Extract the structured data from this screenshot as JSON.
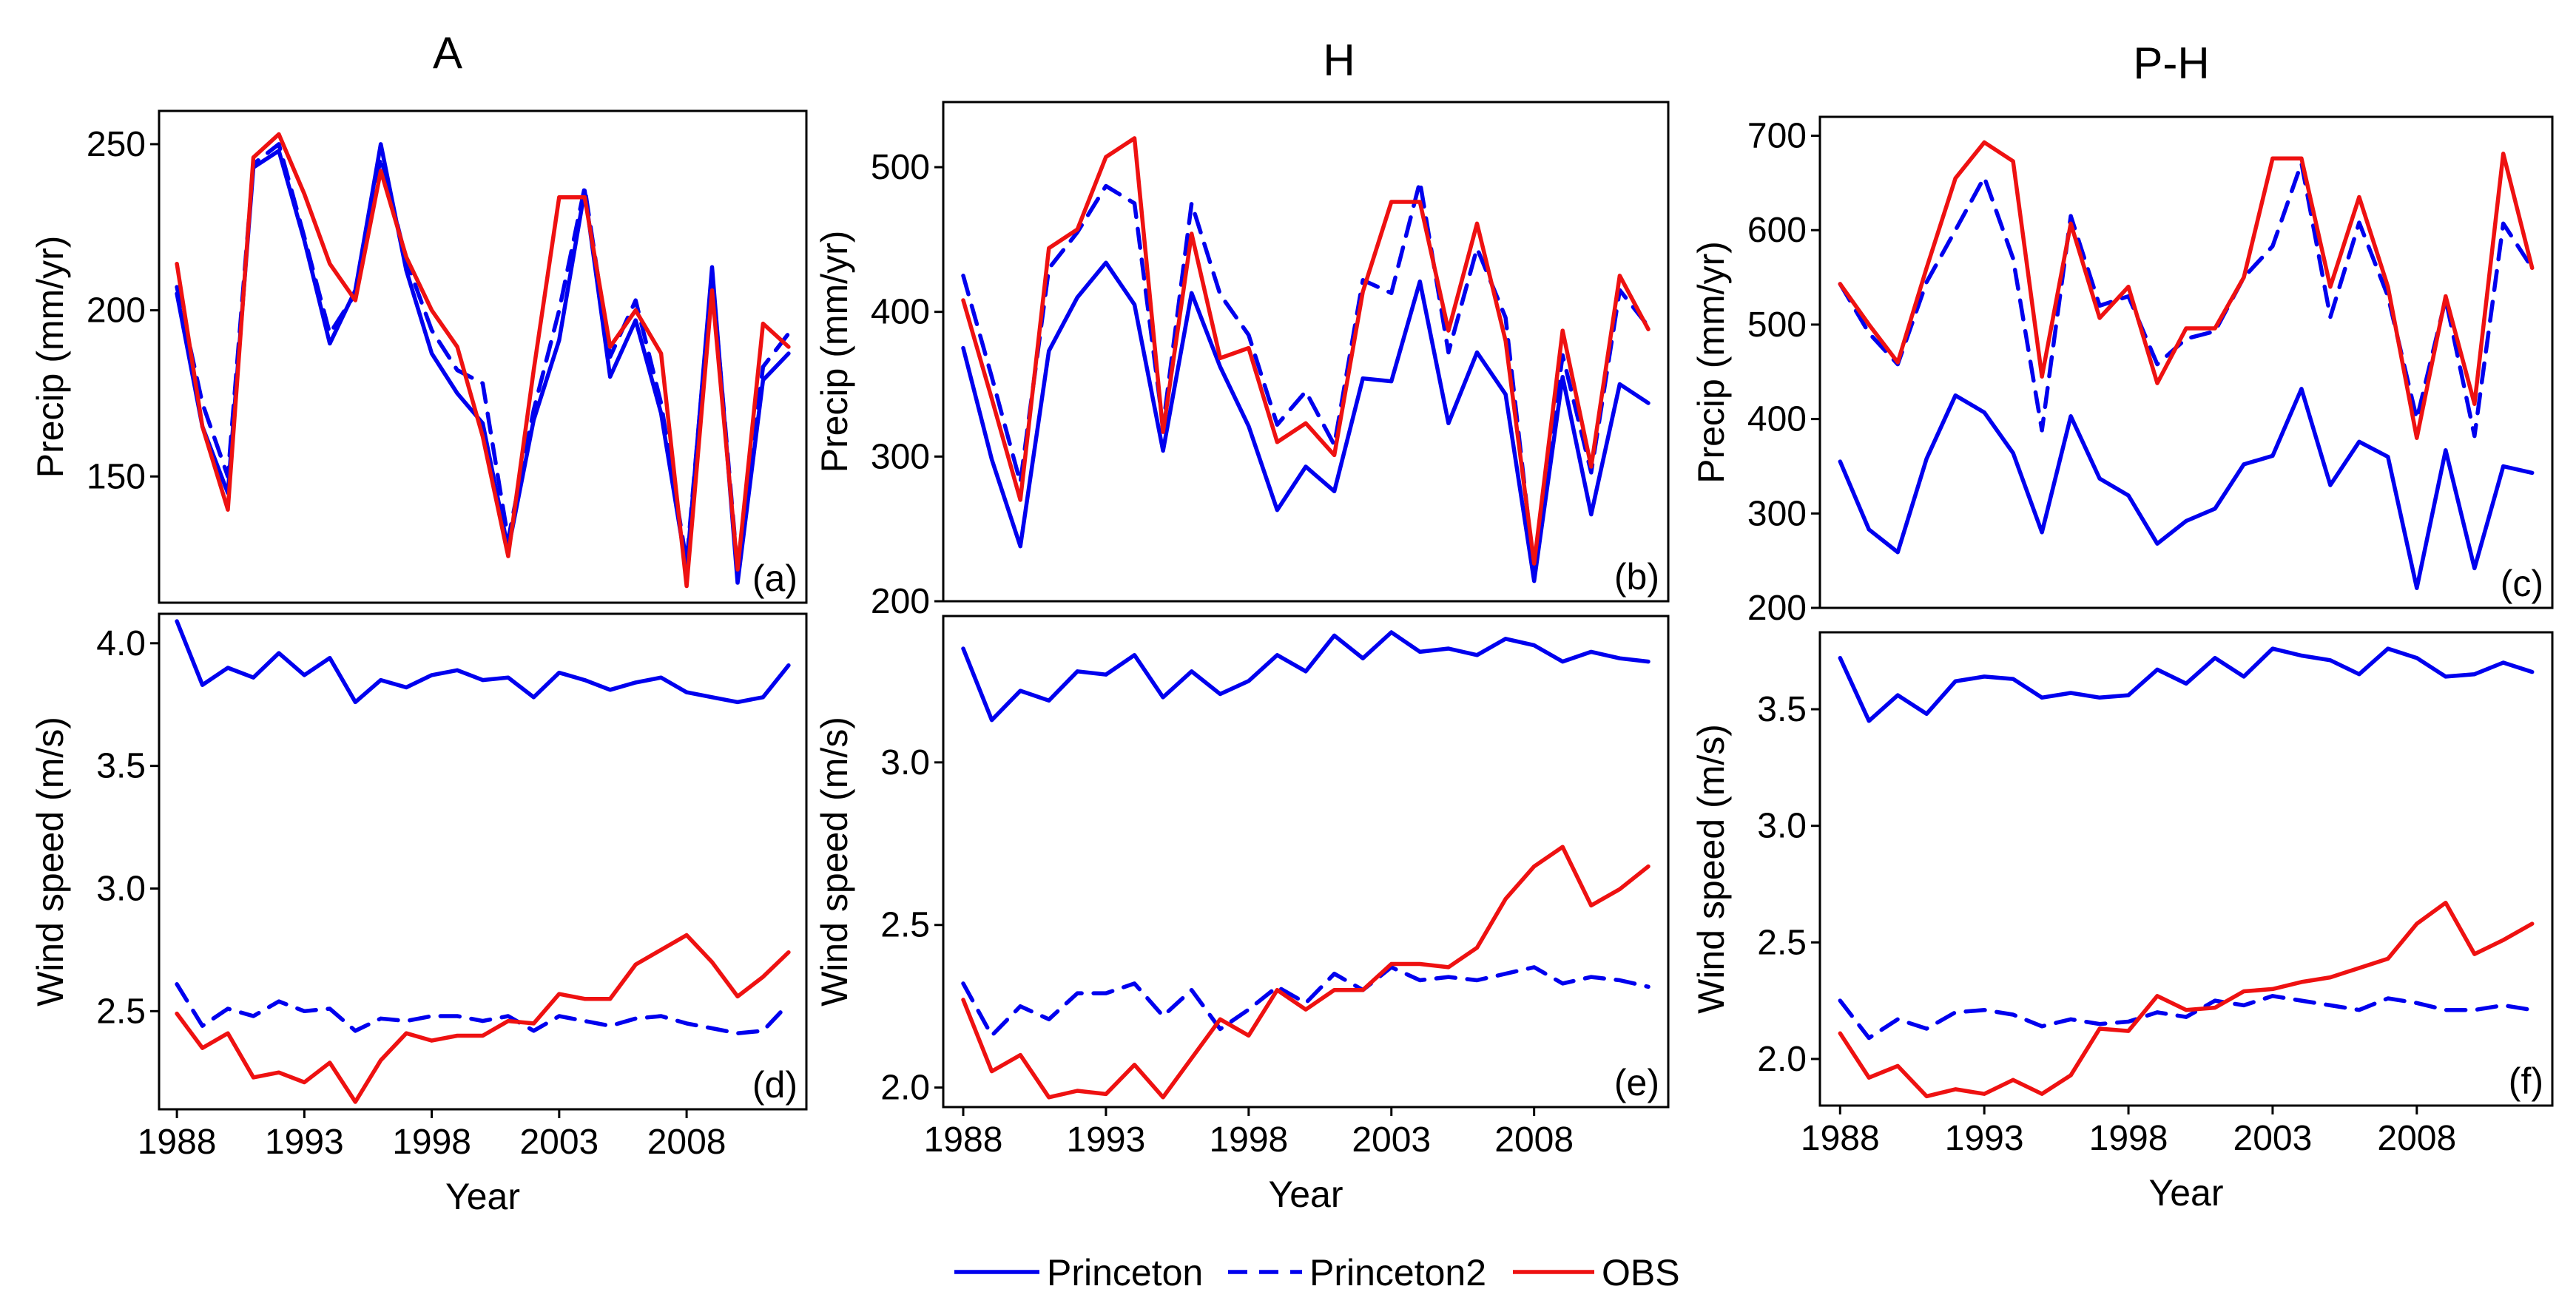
{
  "columns": [
    {
      "title": "A"
    },
    {
      "title": "H"
    },
    {
      "title": "P-H"
    }
  ],
  "legend": {
    "items": [
      {
        "label": "Princeton",
        "color": "#0000ee",
        "dash": "solid"
      },
      {
        "label": "Princeton2",
        "color": "#0000ee",
        "dash": "dashed"
      },
      {
        "label": "OBS",
        "color": "#ee1111",
        "dash": "solid"
      }
    ]
  },
  "chart_data": [
    {
      "id": "a",
      "type": "line",
      "tag": "(a)",
      "column": "A",
      "title": "",
      "xlabel": "",
      "ylabel": "Precip (mm/yr)",
      "x": [
        1988,
        1989,
        1990,
        1991,
        1992,
        1993,
        1994,
        1995,
        1996,
        1997,
        1998,
        1999,
        2000,
        2001,
        2002,
        2003,
        2004,
        2005,
        2006,
        2007,
        2008,
        2009,
        2010,
        2011,
        2012
      ],
      "xlim": [
        1987.3,
        2012.7
      ],
      "ylim": [
        112,
        260
      ],
      "xticks": [
        1988,
        1993,
        1998,
        2003,
        2008
      ],
      "yticks": [
        150,
        200,
        250
      ],
      "series": [
        {
          "name": "Princeton",
          "values": [
            205,
            165,
            145,
            243,
            248,
            221,
            190,
            206,
            250,
            212,
            187,
            175,
            166,
            128,
            167,
            191,
            236,
            180,
            197,
            169,
            122,
            213,
            118,
            179,
            187
          ]
        },
        {
          "name": "Princeton2",
          "values": [
            207,
            172,
            150,
            244,
            250,
            222,
            193,
            205,
            246,
            215,
            194,
            182,
            178,
            131,
            170,
            200,
            237,
            186,
            203,
            172,
            124,
            211,
            122,
            183,
            193
          ]
        },
        {
          "name": "OBS",
          "values": [
            214,
            165,
            140,
            246,
            253,
            235,
            214,
            203,
            242,
            216,
            200,
            189,
            162,
            126,
            182,
            234,
            234,
            189,
            200,
            187,
            117,
            206,
            122,
            196,
            189
          ]
        }
      ]
    },
    {
      "id": "b",
      "type": "line",
      "tag": "(b)",
      "column": "H",
      "title": "",
      "xlabel": "",
      "ylabel": "Precip (mm/yr)",
      "x": [
        1988,
        1989,
        1990,
        1991,
        1992,
        1993,
        1994,
        1995,
        1996,
        1997,
        1998,
        1999,
        2000,
        2001,
        2002,
        2003,
        2004,
        2005,
        2006,
        2007,
        2008,
        2009,
        2010,
        2011,
        2012
      ],
      "xlim": [
        1987.3,
        2012.7
      ],
      "ylim": [
        200,
        545
      ],
      "xticks": [
        1988,
        1993,
        1998,
        2003,
        2008
      ],
      "yticks": [
        200,
        300,
        400,
        500
      ],
      "series": [
        {
          "name": "Princeton",
          "values": [
            375,
            298,
            238,
            373,
            410,
            434,
            405,
            304,
            413,
            362,
            321,
            263,
            293,
            276,
            354,
            352,
            421,
            323,
            372,
            343,
            214,
            355,
            260,
            350,
            337
          ]
        },
        {
          "name": "Princeton2",
          "values": [
            425,
            355,
            282,
            430,
            455,
            487,
            475,
            321,
            475,
            412,
            384,
            322,
            345,
            308,
            422,
            413,
            490,
            372,
            444,
            396,
            221,
            370,
            289,
            415,
            390
          ]
        },
        {
          "name": "OBS",
          "values": [
            408,
            340,
            270,
            444,
            457,
            507,
            520,
            317,
            454,
            368,
            375,
            310,
            323,
            301,
            414,
            476,
            476,
            387,
            461,
            380,
            226,
            387,
            293,
            425,
            388
          ]
        }
      ]
    },
    {
      "id": "c",
      "type": "line",
      "tag": "(c)",
      "column": "P-H",
      "title": "",
      "xlabel": "",
      "ylabel": "Precip (mm/yr)",
      "x": [
        1988,
        1989,
        1990,
        1991,
        1992,
        1993,
        1994,
        1995,
        1996,
        1997,
        1998,
        1999,
        2000,
        2001,
        2002,
        2003,
        2004,
        2005,
        2006,
        2007,
        2008,
        2009,
        2010,
        2011,
        2012
      ],
      "xlim": [
        1987.3,
        2012.7
      ],
      "ylim": [
        200,
        720
      ],
      "xticks": [
        1988,
        1993,
        1998,
        2003,
        2008
      ],
      "yticks": [
        200,
        300,
        400,
        500,
        600,
        700
      ],
      "series": [
        {
          "name": "Princeton",
          "values": [
            355,
            283,
            259,
            358,
            425,
            407,
            364,
            280,
            403,
            337,
            319,
            268,
            292,
            305,
            352,
            361,
            432,
            330,
            376,
            360,
            221,
            367,
            242,
            350,
            343
          ]
        },
        {
          "name": "Princeton2",
          "values": [
            543,
            491,
            458,
            545,
            600,
            656,
            570,
            388,
            615,
            520,
            530,
            458,
            485,
            493,
            550,
            583,
            671,
            508,
            608,
            530,
            400,
            527,
            382,
            607,
            560
          ]
        },
        {
          "name": "OBS",
          "values": [
            543,
            500,
            460,
            560,
            655,
            693,
            673,
            445,
            607,
            507,
            540,
            438,
            496,
            496,
            550,
            676,
            676,
            540,
            635,
            540,
            380,
            530,
            416,
            681,
            560
          ]
        }
      ]
    },
    {
      "id": "d",
      "type": "line",
      "tag": "(d)",
      "column": "A",
      "title": "",
      "xlabel": "Year",
      "ylabel": "Wind speed (m/s)",
      "x": [
        1988,
        1989,
        1990,
        1991,
        1992,
        1993,
        1994,
        1995,
        1996,
        1997,
        1998,
        1999,
        2000,
        2001,
        2002,
        2003,
        2004,
        2005,
        2006,
        2007,
        2008,
        2009,
        2010,
        2011,
        2012
      ],
      "xlim": [
        1987.3,
        2012.7
      ],
      "ylim": [
        2.1,
        4.12
      ],
      "xticks": [
        1988,
        1993,
        1998,
        2003,
        2008
      ],
      "yticks": [
        2.5,
        3.0,
        3.5,
        4.0
      ],
      "series": [
        {
          "name": "Princeton",
          "values": [
            4.09,
            3.83,
            3.9,
            3.86,
            3.96,
            3.87,
            3.94,
            3.76,
            3.85,
            3.82,
            3.87,
            3.89,
            3.85,
            3.86,
            3.78,
            3.88,
            3.85,
            3.81,
            3.84,
            3.86,
            3.8,
            3.78,
            3.76,
            3.78,
            3.91
          ]
        },
        {
          "name": "Princeton2",
          "values": [
            2.61,
            2.44,
            2.51,
            2.48,
            2.54,
            2.5,
            2.51,
            2.42,
            2.47,
            2.46,
            2.48,
            2.48,
            2.46,
            2.48,
            2.42,
            2.48,
            2.46,
            2.44,
            2.47,
            2.48,
            2.45,
            2.43,
            2.41,
            2.42,
            2.53
          ]
        },
        {
          "name": "OBS",
          "values": [
            2.49,
            2.35,
            2.41,
            2.23,
            2.25,
            2.21,
            2.29,
            2.13,
            2.3,
            2.41,
            2.38,
            2.4,
            2.4,
            2.46,
            2.45,
            2.57,
            2.55,
            2.55,
            2.69,
            2.75,
            2.81,
            2.7,
            2.56,
            2.64,
            2.74
          ]
        }
      ]
    },
    {
      "id": "e",
      "type": "line",
      "tag": "(e)",
      "column": "H",
      "title": "",
      "xlabel": "Year",
      "ylabel": "Wind speed (m/s)",
      "x": [
        1988,
        1989,
        1990,
        1991,
        1992,
        1993,
        1994,
        1995,
        1996,
        1997,
        1998,
        1999,
        2000,
        2001,
        2002,
        2003,
        2004,
        2005,
        2006,
        2007,
        2008,
        2009,
        2010,
        2011,
        2012
      ],
      "xlim": [
        1987.3,
        2012.7
      ],
      "ylim": [
        1.94,
        3.45
      ],
      "xticks": [
        1988,
        1993,
        1998,
        2003,
        2008
      ],
      "yticks": [
        2.0,
        2.5,
        3.0
      ],
      "series": [
        {
          "name": "Princeton",
          "values": [
            3.35,
            3.13,
            3.22,
            3.19,
            3.28,
            3.27,
            3.33,
            3.2,
            3.28,
            3.21,
            3.25,
            3.33,
            3.28,
            3.39,
            3.32,
            3.4,
            3.34,
            3.35,
            3.33,
            3.38,
            3.36,
            3.31,
            3.34,
            3.32,
            3.31
          ]
        },
        {
          "name": "Princeton2",
          "values": [
            2.32,
            2.16,
            2.25,
            2.21,
            2.29,
            2.29,
            2.32,
            2.22,
            2.3,
            2.18,
            2.24,
            2.31,
            2.26,
            2.35,
            2.3,
            2.37,
            2.33,
            2.34,
            2.33,
            2.35,
            2.37,
            2.32,
            2.34,
            2.33,
            2.31
          ]
        },
        {
          "name": "OBS",
          "values": [
            2.27,
            2.05,
            2.1,
            1.97,
            1.99,
            1.98,
            2.07,
            1.97,
            2.09,
            2.21,
            2.16,
            2.3,
            2.24,
            2.3,
            2.3,
            2.38,
            2.38,
            2.37,
            2.43,
            2.58,
            2.68,
            2.74,
            2.56,
            2.61,
            2.68
          ]
        }
      ]
    },
    {
      "id": "f",
      "type": "line",
      "tag": "(f)",
      "column": "P-H",
      "title": "",
      "xlabel": "Year",
      "ylabel": "Wind speed (m/s)",
      "x": [
        1988,
        1989,
        1990,
        1991,
        1992,
        1993,
        1994,
        1995,
        1996,
        1997,
        1998,
        1999,
        2000,
        2001,
        2002,
        2003,
        2004,
        2005,
        2006,
        2007,
        2008,
        2009,
        2010,
        2011,
        2012
      ],
      "xlim": [
        1987.3,
        2012.7
      ],
      "ylim": [
        1.8,
        3.83
      ],
      "xticks": [
        1988,
        1993,
        1998,
        2003,
        2008
      ],
      "yticks": [
        2.0,
        2.5,
        3.0,
        3.5
      ],
      "series": [
        {
          "name": "Princeton",
          "values": [
            3.72,
            3.45,
            3.56,
            3.48,
            3.62,
            3.64,
            3.63,
            3.55,
            3.57,
            3.55,
            3.56,
            3.67,
            3.61,
            3.72,
            3.64,
            3.76,
            3.73,
            3.71,
            3.65,
            3.76,
            3.72,
            3.64,
            3.65,
            3.7,
            3.66
          ]
        },
        {
          "name": "Princeton2",
          "values": [
            2.25,
            2.09,
            2.17,
            2.13,
            2.2,
            2.21,
            2.19,
            2.14,
            2.17,
            2.15,
            2.16,
            2.2,
            2.18,
            2.25,
            2.23,
            2.27,
            2.25,
            2.23,
            2.21,
            2.26,
            2.24,
            2.21,
            2.21,
            2.23,
            2.21
          ]
        },
        {
          "name": "OBS",
          "values": [
            2.11,
            1.92,
            1.97,
            1.84,
            1.87,
            1.85,
            1.91,
            1.85,
            1.93,
            2.13,
            2.12,
            2.27,
            2.21,
            2.22,
            2.29,
            2.3,
            2.33,
            2.35,
            2.39,
            2.43,
            2.58,
            2.67,
            2.45,
            2.51,
            2.58
          ]
        }
      ]
    }
  ]
}
